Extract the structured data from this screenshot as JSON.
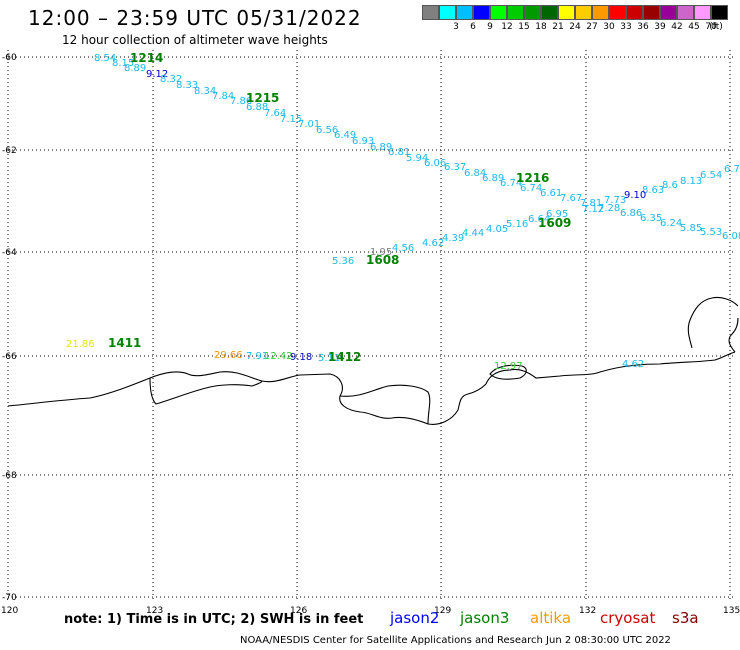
{
  "header": {
    "title": "12:00 – 23:59 UTC 05/31/2022",
    "subtitle": "12 hour collection of altimeter wave heights"
  },
  "legend": {
    "unit": "(ft)",
    "items": [
      {
        "label": "",
        "color": "#808080"
      },
      {
        "label": "3",
        "color": "#00ffff"
      },
      {
        "label": "6",
        "color": "#00bfff"
      },
      {
        "label": "9",
        "color": "#0000ff"
      },
      {
        "label": "12",
        "color": "#00ff00"
      },
      {
        "label": "15",
        "color": "#00cc00"
      },
      {
        "label": "18",
        "color": "#009900"
      },
      {
        "label": "21",
        "color": "#006600"
      },
      {
        "label": "24",
        "color": "#ffff00"
      },
      {
        "label": "27",
        "color": "#ffcc00"
      },
      {
        "label": "30",
        "color": "#ff9900"
      },
      {
        "label": "33",
        "color": "#ff0000"
      },
      {
        "label": "36",
        "color": "#cc0000"
      },
      {
        "label": "39",
        "color": "#990000"
      },
      {
        "label": "42",
        "color": "#990099"
      },
      {
        "label": "45",
        "color": "#cc66cc"
      },
      {
        "label": "70",
        "color": "#ff99ff"
      },
      {
        "label": "",
        "color": "#000000"
      }
    ]
  },
  "map": {
    "lat_labels": [
      "-60",
      "-62",
      "-64",
      "-66",
      "-68",
      "-70"
    ],
    "lon_labels": [
      "120",
      "123",
      "126",
      "129",
      "132",
      "135"
    ],
    "wave_heights": [
      {
        "v": "8.54",
        "c": "#1fb8e8"
      },
      {
        "v": "8.15",
        "c": "#1fb8e8"
      },
      {
        "v": "8.89",
        "c": "#1fb8e8"
      },
      {
        "v": "9.12",
        "c": "#0000c8"
      },
      {
        "v": "8.32",
        "c": "#1fb8e8"
      },
      {
        "v": "8.33",
        "c": "#1fb8e8"
      },
      {
        "v": "8.34",
        "c": "#1fb8e8"
      },
      {
        "v": "7.84",
        "c": "#1fb8e8"
      },
      {
        "v": "7.86",
        "c": "#1fb8e8"
      },
      {
        "v": "6.88",
        "c": "#1fb8e8"
      },
      {
        "v": "7.64",
        "c": "#1fb8e8"
      },
      {
        "v": "7.15",
        "c": "#1fb8e8"
      },
      {
        "v": "7.01",
        "c": "#1fb8e8"
      },
      {
        "v": "6.56",
        "c": "#1fb8e8"
      },
      {
        "v": "6.49",
        "c": "#1fb8e8"
      },
      {
        "v": "6.93",
        "c": "#1fb8e8"
      },
      {
        "v": "6.89",
        "c": "#1fb8e8"
      },
      {
        "v": "6.81",
        "c": "#1fb8e8"
      },
      {
        "v": "5.94",
        "c": "#1fb8e8"
      },
      {
        "v": "6.06",
        "c": "#1fb8e8"
      },
      {
        "v": "6.37",
        "c": "#1fb8e8"
      },
      {
        "v": "6.84",
        "c": "#1fb8e8"
      },
      {
        "v": "6.89",
        "c": "#1fb8e8"
      },
      {
        "v": "6.74",
        "c": "#1fb8e8"
      },
      {
        "v": "6.74",
        "c": "#1fb8e8"
      },
      {
        "v": "6.61",
        "c": "#1fb8e8"
      },
      {
        "v": "7.67",
        "c": "#1fb8e8"
      },
      {
        "v": "7.81",
        "c": "#1fb8e8"
      },
      {
        "v": "7.28",
        "c": "#1fb8e8"
      },
      {
        "v": "6.86",
        "c": "#1fb8e8"
      },
      {
        "v": "6.35",
        "c": "#1fb8e8"
      },
      {
        "v": "6.24",
        "c": "#1fb8e8"
      },
      {
        "v": "5.85",
        "c": "#1fb8e8"
      },
      {
        "v": "5.53",
        "c": "#1fb8e8"
      },
      {
        "v": "6.08",
        "c": "#1fb8e8"
      },
      {
        "v": "6.73",
        "c": "#1fb8e8"
      },
      {
        "v": "6.54",
        "c": "#1fb8e8"
      },
      {
        "v": "8.13",
        "c": "#1fb8e8"
      },
      {
        "v": "8.6",
        "c": "#1fb8e8"
      },
      {
        "v": "8.63",
        "c": "#1fb8e8"
      },
      {
        "v": "9.10",
        "c": "#0000c8"
      },
      {
        "v": "7.73",
        "c": "#1fb8e8"
      },
      {
        "v": "7.12",
        "c": "#1fb8e8"
      },
      {
        "v": "6.95",
        "c": "#1fb8e8"
      },
      {
        "v": "6.64",
        "c": "#1fb8e8"
      },
      {
        "v": "5.16",
        "c": "#1fb8e8"
      },
      {
        "v": "4.05",
        "c": "#1fb8e8"
      },
      {
        "v": "4.44",
        "c": "#1fb8e8"
      },
      {
        "v": "4.39",
        "c": "#1fb8e8"
      },
      {
        "v": "4.62",
        "c": "#1fb8e8"
      },
      {
        "v": "4.56",
        "c": "#1fb8e8"
      },
      {
        "v": "1.95",
        "c": "#808080"
      },
      {
        "v": "5.36",
        "c": "#1fb8e8"
      },
      {
        "v": "21.86",
        "c": "#e6e600"
      },
      {
        "v": "29.66",
        "c": "#e69500"
      },
      {
        "v": "7.91",
        "c": "#1fb8e8"
      },
      {
        "v": "12.42",
        "c": "#33cc33"
      },
      {
        "v": "9.18",
        "c": "#0000c8"
      },
      {
        "v": "5.11",
        "c": "#1fb8e8"
      },
      {
        "v": "12.97",
        "c": "#33cc33"
      },
      {
        "v": "4.62",
        "c": "#1fb8e8"
      }
    ],
    "time_labels": [
      {
        "v": "1214",
        "c": "#008000"
      },
      {
        "v": "1215",
        "c": "#008000"
      },
      {
        "v": "1216",
        "c": "#008000"
      },
      {
        "v": "1609",
        "c": "#008000"
      },
      {
        "v": "1608",
        "c": "#008000"
      },
      {
        "v": "1411",
        "c": "#008000"
      },
      {
        "v": "1412",
        "c": "#008000"
      }
    ]
  },
  "footer": {
    "note": "note:  1) Time is in UTC;  2) SWH is in feet",
    "satellites": [
      {
        "name": "jason2",
        "color": "#0000ff"
      },
      {
        "name": "jason3",
        "color": "#008000"
      },
      {
        "name": "altika",
        "color": "#ff9900"
      },
      {
        "name": "cryosat",
        "color": "#cc0000"
      },
      {
        "name": "s3a",
        "color": "#800000"
      }
    ],
    "credit": "NOAA/NESDIS Center for Satellite Applications and Research    Jun  2 08:30:00 UTC 2022"
  }
}
